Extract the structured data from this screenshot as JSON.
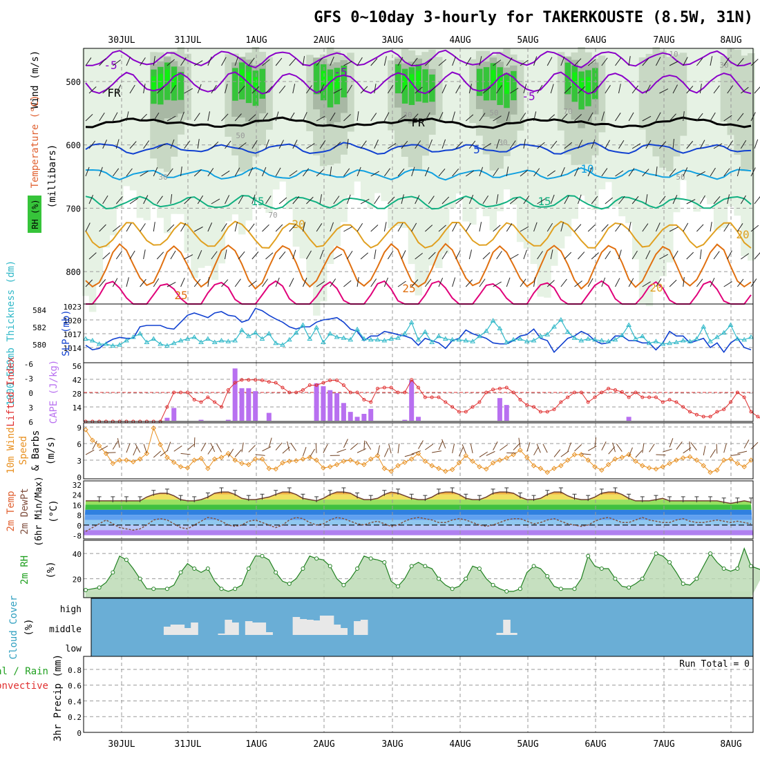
{
  "title": "GFS 0~10day 3-hourly for TAKERKOUSTE (8.5W, 31N)",
  "dates": [
    "30JUL",
    "31JUL",
    "1AUG",
    "2AUG",
    "3AUG",
    "4AUG",
    "5AUG",
    "6AUG",
    "7AUG",
    "8AUG"
  ],
  "colors": {
    "grid": "#999999",
    "purple": "#8a00c8",
    "black": "#000000",
    "blue": "#1040d0",
    "cyan": "#10a0e0",
    "teal": "#10b080",
    "orange": "#e0a020",
    "dorange": "#e07010",
    "magenta": "#e0007a",
    "rhlight": "#e6f2e4",
    "rhmid": "#c8d8c4",
    "rhdark": "#a8b8a4",
    "green": "#36c43a",
    "bright": "#10f010",
    "sky": "#6aaed6"
  },
  "chart_data": [
    {
      "type": "contour",
      "panel": "upper-air",
      "ylabel_lines": [
        "Wind (m/s)",
        "Temperature (°C)",
        "RH (%)"
      ],
      "ylabel_units": "(millibars)",
      "yticks": [
        500,
        600,
        700,
        800
      ],
      "ylim": [
        450,
        850
      ],
      "isotherm_labels": [
        "-5",
        "-5",
        "-5",
        "FR",
        "FR",
        "5",
        "10",
        "15",
        "15",
        "20",
        "20",
        "25",
        "25",
        "20"
      ],
      "rh_labels": [
        "10",
        "30",
        "50",
        "70",
        "30",
        "30",
        "50",
        "70",
        "50",
        "30"
      ]
    },
    {
      "type": "line",
      "panel": "thickness-slp",
      "ylabel_left": "1000-500mb Thickness (dm)",
      "ylabel_right": "SLP (mb)",
      "yticks_left": [
        "584",
        "582",
        "580"
      ],
      "yticks_right": [
        "1023",
        "1020",
        "1017",
        "1014"
      ],
      "ylim_slp": [
        1011,
        1023
      ],
      "slp": [
        1014.5,
        1013.5,
        1013.8,
        1015.0,
        1015.8,
        1016.2,
        1016.0,
        1016.0,
        1018.5,
        1018.8,
        1018.8,
        1018.8,
        1018.2,
        1018.0,
        1019.5,
        1021.0,
        1021.5,
        1021.0,
        1020.5,
        1021.5,
        1021.8,
        1021.0,
        1020.8,
        1019.5,
        1020.0,
        1022.5,
        1022.0,
        1021.0,
        1020.2,
        1019.5,
        1018.5,
        1018.0,
        1018.5,
        1018.5,
        1019.5,
        1020.0,
        1020.2,
        1020.5,
        1019.5,
        1018.0,
        1017.5,
        1015.5,
        1016.5,
        1016.5,
        1017.5,
        1017.2,
        1016.8,
        1016.5,
        1016.0,
        1014.5,
        1016.0,
        1015.5,
        1015.0,
        1013.8,
        1015.5,
        1016.0,
        1017.8,
        1017.0,
        1016.5,
        1016.0,
        1015.0,
        1014.8,
        1014.8,
        1015.5,
        1016.5,
        1016.8,
        1018.0,
        1016.0,
        1015.5,
        1013.0,
        1014.5,
        1016.0,
        1016.5,
        1017.5,
        1016.8,
        1015.5,
        1014.8,
        1015.0,
        1016.5,
        1016.5,
        1015.5,
        1015.5,
        1015.0,
        1015.0,
        1013.5,
        1015.0,
        1017.5,
        1016.5,
        1016.5,
        1015.0,
        1015.5,
        1016.0,
        1014.0,
        1015.0,
        1013.0,
        1015.0,
        1016.0,
        1014.0,
        1013.5
      ],
      "thickness": [
        580.6,
        580.4,
        580.0,
        580.0,
        579.8,
        579.9,
        580.4,
        580.8,
        581.2,
        580.2,
        580.6,
        580.0,
        579.8,
        580.1,
        580.4,
        580.6,
        580.8,
        580.2,
        580.6,
        580.2,
        580.4,
        580.3,
        580.4,
        581.6,
        580.9,
        581.3,
        580.6,
        581.2,
        580.1,
        579.9,
        580.5,
        581.3,
        582.2,
        580.6,
        581.9,
        580.2,
        581.2,
        580.8,
        580.7,
        580.5,
        581.7,
        580.6,
        580.5,
        580.5,
        580.4,
        580.6,
        580.7,
        581.2,
        582.5,
        580.5,
        581.4,
        580.2,
        580.9,
        580.6,
        580.5,
        580.5,
        580.4,
        580.3,
        580.9,
        581.5,
        582.7,
        581.8,
        580.2,
        580.5,
        580.6,
        580.3,
        580.4,
        580.9,
        581.1,
        582.0,
        582.8,
        581.4,
        580.7,
        580.4,
        580.6,
        580.5,
        580.4,
        580.3,
        580.5,
        581.0,
        582.2,
        580.6,
        580.9,
        580.1,
        580.3,
        580.0,
        580.1,
        580.2,
        580.4,
        580.3,
        580.6,
        582.0,
        580.3,
        580.8,
        581.3,
        582.2,
        580.6,
        580.5,
        580.8
      ]
    },
    {
      "type": "bar",
      "panel": "lifted-cape",
      "ylabel_left": "Lifted Index",
      "ylabel_right": "CAPE (J/kg)",
      "yticks_left": [
        "-6",
        "-3",
        "0",
        "3",
        "6"
      ],
      "yticks_right": [
        "56",
        "42",
        "28",
        "14"
      ],
      "cape": [
        0,
        0,
        0,
        0,
        0,
        0,
        0,
        0,
        0,
        0,
        0,
        0,
        3,
        13,
        0,
        0,
        0,
        1,
        0,
        0,
        0,
        1,
        53,
        33,
        33,
        30,
        0,
        8,
        0,
        0,
        0,
        0,
        0,
        0,
        38,
        35,
        31,
        28,
        18,
        9,
        4,
        7,
        12,
        0,
        0,
        0,
        0,
        1,
        41,
        4,
        0,
        0,
        0,
        0,
        0,
        0,
        0,
        0,
        0,
        0,
        0,
        23,
        16,
        0,
        0,
        0,
        0,
        0,
        0,
        0,
        0,
        0,
        0,
        0,
        0,
        0,
        0,
        0,
        0,
        0,
        4,
        0,
        0,
        0,
        0,
        0,
        0,
        0,
        0,
        0,
        0,
        0,
        0,
        0,
        0,
        0,
        0,
        0,
        0,
        0
      ],
      "lifted": [
        8,
        8,
        8,
        8,
        8,
        8,
        6.6,
        8,
        8,
        8,
        8,
        7,
        3,
        0,
        0,
        0,
        1.5,
        2,
        1,
        2,
        3,
        -0.5,
        -2,
        -2.6,
        -2.6,
        -2.6,
        -2.5,
        -2.2,
        -2,
        -1,
        0,
        0,
        -0.5,
        -1.5,
        -1.5,
        -2,
        -2.5,
        -2.5,
        -1.5,
        0,
        0,
        1.5,
        2,
        -0.8,
        -1,
        -1,
        0,
        0,
        -2.6,
        -1,
        1,
        1,
        1,
        2,
        3,
        4,
        4,
        3,
        2,
        0,
        -0.6,
        -0.8,
        -1,
        0,
        1.5,
        2.6,
        3,
        4,
        4,
        3.5,
        2,
        1,
        0,
        0,
        2,
        1,
        0,
        -0.8,
        -0.5,
        -0.1,
        1,
        0,
        1,
        1,
        1,
        2,
        1.5,
        2,
        3,
        4,
        4.6,
        5,
        5,
        4,
        3.5,
        2,
        0,
        1,
        4,
        5,
        6
      ]
    },
    {
      "type": "line",
      "panel": "wind10m",
      "ylabel": "10m Wind Speed & Barbs (m/s)",
      "yticks": [
        "9",
        "6",
        "3",
        "0"
      ],
      "ylim": [
        0,
        9
      ],
      "speed": [
        8.5,
        6.6,
        5.6,
        4.2,
        2.4,
        3.0,
        3.0,
        2.7,
        3.2,
        4.2,
        8.8,
        5.8,
        3.5,
        2.6,
        1.8,
        1.6,
        3.0,
        3.3,
        1.5,
        3.2,
        3.5,
        4.2,
        3.0,
        2.4,
        2.2,
        3.2,
        3.2,
        1.5,
        1.4,
        2.5,
        2.8,
        2.9,
        3.2,
        3.5,
        3.0,
        1.6,
        1.8,
        2.2,
        2.8,
        3.0,
        2.5,
        2.2,
        3.2,
        3.8,
        1.5,
        1.0,
        2.0,
        2.6,
        3.2,
        4.2,
        2.8,
        2.0,
        1.5,
        1.0,
        1.3,
        2.5,
        3.8,
        2.8,
        1.8,
        1.4,
        2.5,
        3.0,
        3.4,
        4.0,
        4.8,
        3.5,
        2.0,
        1.5,
        0.8,
        1.5,
        2.0,
        3.0,
        4.0,
        4.0,
        3.0,
        1.8,
        1.2,
        2.2,
        3.2,
        3.5,
        4.0,
        2.8,
        2.0,
        1.6,
        1.4,
        1.8,
        2.4,
        3.0,
        3.4,
        3.6,
        3.0,
        2.0,
        0.8,
        1.2,
        3.0,
        3.2,
        2.4,
        1.8,
        3.0
      ]
    },
    {
      "type": "area",
      "panel": "temp2m",
      "ylabel": "2m Temp 2m DewPt (6hr Min/Max) (°C)",
      "yticks": [
        "32",
        "24",
        "16",
        "8",
        "0",
        "-8"
      ],
      "ylim": [
        -8,
        32
      ],
      "temp": [
        19,
        19,
        19,
        19,
        19,
        19,
        19,
        19,
        19,
        22,
        24,
        25,
        25,
        23,
        20,
        19,
        19,
        20,
        22,
        25,
        26,
        26,
        24,
        21,
        20,
        20,
        21,
        22,
        24,
        26,
        26,
        24,
        21,
        20,
        19,
        21,
        24,
        26,
        26,
        25,
        22,
        20,
        20,
        21,
        24,
        26,
        25,
        23,
        21,
        20,
        20,
        22,
        25,
        26,
        26,
        24,
        21,
        20,
        20,
        22,
        25,
        26,
        26,
        25,
        22,
        20,
        20,
        21,
        24,
        26,
        26,
        23,
        21,
        20,
        20,
        22,
        25,
        26,
        26,
        24,
        21,
        19,
        19,
        19,
        20,
        21,
        19,
        19,
        19,
        19,
        19,
        19,
        19,
        19,
        18,
        17,
        18,
        19,
        18
      ],
      "dewpt": [
        -5,
        -2,
        1,
        4,
        1,
        -2,
        -3,
        -4,
        -3,
        0,
        4,
        5,
        4,
        1,
        -2,
        -3,
        0,
        3,
        6,
        5,
        3,
        0,
        -1,
        0,
        3,
        4,
        2,
        0,
        -2,
        0,
        4,
        6,
        5,
        2,
        0,
        1,
        4,
        6,
        5,
        3,
        1,
        0,
        2,
        3,
        1,
        -1,
        0,
        3,
        5,
        6,
        5,
        4,
        2,
        2,
        4,
        5,
        4,
        2,
        0,
        -1,
        0,
        2,
        4,
        5,
        5,
        3,
        1,
        2,
        4,
        5,
        3,
        1,
        0,
        -1,
        0,
        3,
        5,
        6,
        4,
        2,
        2,
        4,
        6,
        4,
        3,
        2,
        2,
        4,
        5,
        3,
        2,
        2,
        3,
        4,
        3,
        2,
        3,
        2,
        1
      ]
    },
    {
      "type": "area",
      "panel": "rh2m",
      "ylabel": "2m RH (%)",
      "yticks": [
        "40",
        "20"
      ],
      "ylim": [
        5,
        45
      ],
      "rh": [
        11,
        12,
        13,
        17,
        25,
        38,
        35,
        28,
        20,
        12,
        12,
        12,
        12,
        15,
        25,
        32,
        28,
        25,
        28,
        18,
        12,
        10,
        12,
        15,
        28,
        38,
        38,
        35,
        25,
        18,
        16,
        20,
        28,
        38,
        36,
        35,
        30,
        20,
        15,
        20,
        28,
        38,
        36,
        35,
        33,
        18,
        14,
        20,
        30,
        33,
        30,
        28,
        20,
        15,
        12,
        14,
        20,
        30,
        28,
        20,
        15,
        12,
        10,
        10,
        12,
        25,
        30,
        28,
        22,
        14,
        12,
        12,
        12,
        20,
        38,
        30,
        28,
        28,
        20,
        14,
        13,
        16,
        20,
        30,
        40,
        38,
        33,
        25,
        16,
        15,
        20,
        30,
        40,
        33,
        28,
        26,
        28,
        44,
        30,
        28,
        26
      ]
    },
    {
      "type": "bar",
      "panel": "cloud",
      "ylabel": "Cloud Cover (%)",
      "yticks": [
        "high",
        "middle",
        "low"
      ],
      "middle": [
        0,
        0,
        0,
        0,
        0,
        0,
        0,
        0,
        0,
        0,
        0,
        0,
        12,
        15,
        15,
        10,
        18,
        0,
        0,
        0,
        2,
        22,
        18,
        0,
        20,
        18,
        18,
        4,
        0,
        0,
        0,
        26,
        23,
        22,
        21,
        28,
        28,
        15,
        10,
        0,
        20,
        22,
        0,
        0,
        0,
        0,
        0,
        0,
        0,
        0,
        0,
        0,
        0,
        0,
        0,
        0,
        0,
        0,
        0,
        0,
        0,
        3,
        22,
        3,
        0,
        0,
        0,
        0,
        0,
        0,
        0,
        0,
        0,
        0,
        0,
        0,
        0,
        0,
        0,
        0,
        0,
        0,
        0,
        0,
        0,
        0,
        0,
        0,
        0,
        0,
        0,
        0,
        0,
        0,
        0,
        0,
        0,
        0,
        0,
        0
      ]
    },
    {
      "type": "bar",
      "panel": "precip",
      "ylabel": "3hr Precip (mm)",
      "legend": [
        "Total / Rain",
        "Convective"
      ],
      "yticks": [
        "0.8",
        "0.6",
        "0.4",
        "0.2",
        "0"
      ],
      "ylim": [
        0,
        0.9
      ],
      "run_total": "Run Total = 0"
    }
  ]
}
